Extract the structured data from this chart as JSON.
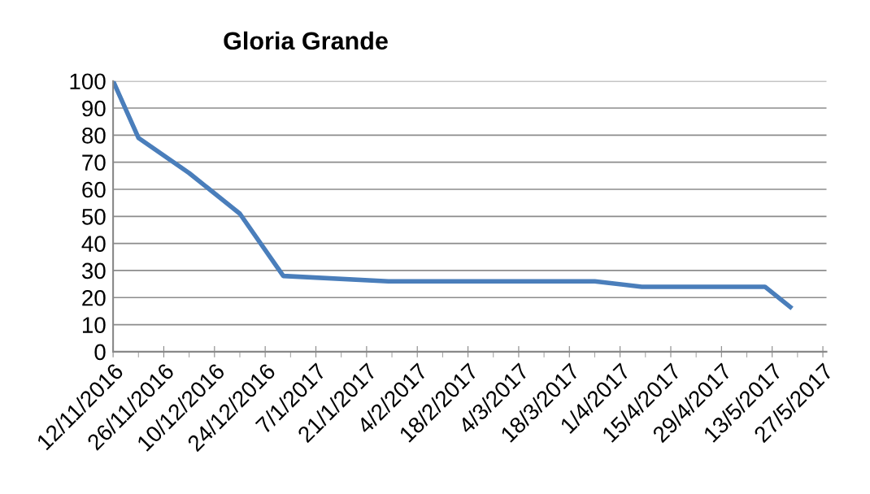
{
  "chart_data": {
    "type": "line",
    "title": "Gloria Grande",
    "x": [
      "2016-11-12",
      "2016-11-19",
      "2016-12-03",
      "2016-12-17",
      "2016-12-29",
      "2017-01-27",
      "2017-03-25",
      "2017-04-07",
      "2017-05-11",
      "2017-05-18"
    ],
    "series": [
      {
        "color": "#4a7ebb",
        "values": [
          100,
          79,
          66,
          51,
          28,
          26,
          26,
          24,
          24,
          16.5
        ]
      }
    ],
    "ylim": [
      0,
      100
    ],
    "yticks": [
      0,
      10,
      20,
      30,
      40,
      50,
      60,
      70,
      80,
      90,
      100
    ],
    "xlim": [
      "2016-11-12",
      "2017-05-28"
    ],
    "xticks": [
      {
        "value": "2016-11-12",
        "label": "12/11/2016"
      },
      {
        "value": "2016-11-19",
        "label": null
      },
      {
        "value": "2016-11-26",
        "label": "26/11/2016"
      },
      {
        "value": "2016-12-03",
        "label": null
      },
      {
        "value": "2016-12-10",
        "label": "10/12/2016"
      },
      {
        "value": "2016-12-17",
        "label": null
      },
      {
        "value": "2016-12-24",
        "label": "24/12/2016"
      },
      {
        "value": "2016-12-31",
        "label": null
      },
      {
        "value": "2017-01-07",
        "label": "7/1/2017"
      },
      {
        "value": "2017-01-14",
        "label": null
      },
      {
        "value": "2017-01-21",
        "label": "21/1/2017"
      },
      {
        "value": "2017-01-28",
        "label": null
      },
      {
        "value": "2017-02-04",
        "label": "4/2/2017"
      },
      {
        "value": "2017-02-11",
        "label": null
      },
      {
        "value": "2017-02-18",
        "label": "18/2/2017"
      },
      {
        "value": "2017-02-25",
        "label": null
      },
      {
        "value": "2017-03-04",
        "label": "4/3/2017"
      },
      {
        "value": "2017-03-11",
        "label": null
      },
      {
        "value": "2017-03-18",
        "label": "18/3/2017"
      },
      {
        "value": "2017-03-25",
        "label": null
      },
      {
        "value": "2017-04-01",
        "label": "1/4/2017"
      },
      {
        "value": "2017-04-08",
        "label": null
      },
      {
        "value": "2017-04-15",
        "label": "15/4/2017"
      },
      {
        "value": "2017-04-22",
        "label": null
      },
      {
        "value": "2017-04-29",
        "label": "29/4/2017"
      },
      {
        "value": "2017-05-06",
        "label": null
      },
      {
        "value": "2017-05-13",
        "label": "13/5/2017"
      },
      {
        "value": "2017-05-20",
        "label": null
      },
      {
        "value": "2017-05-27",
        "label": "27/5/2017"
      }
    ],
    "grid": "y",
    "legend": false,
    "marker": "none",
    "line_style": "solid"
  }
}
